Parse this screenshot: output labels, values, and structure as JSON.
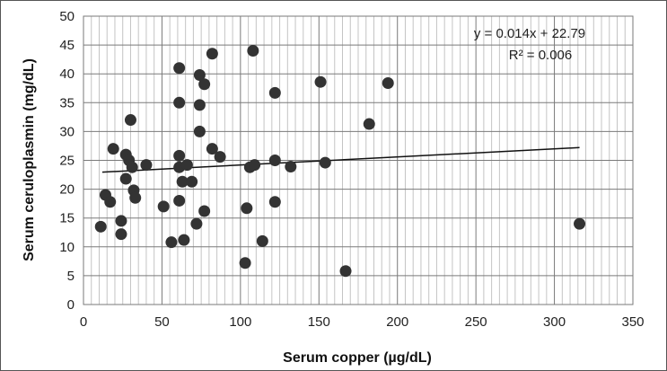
{
  "chart_data": {
    "type": "scatter",
    "xlabel": "Serum copper (µg/dL)",
    "ylabel": "Serum ceruloplasmin (mg/dL)",
    "xlim": [
      0,
      350
    ],
    "ylim": [
      0,
      50
    ],
    "x_major_step": 50,
    "x_minor_step": 5,
    "y_major_step": 5,
    "grid": true,
    "x_ticks": [
      "0",
      "50",
      "100",
      "150",
      "200",
      "250",
      "300",
      "350"
    ],
    "y_ticks": [
      "0",
      "5",
      "10",
      "15",
      "20",
      "25",
      "30",
      "35",
      "40",
      "45",
      "50"
    ],
    "annotations": {
      "equation": "y = 0.014x + 22.79",
      "r_squared": "R² = 0.006"
    },
    "trendline": {
      "slope": 0.014,
      "intercept": 22.79,
      "x_range": [
        12,
        316
      ]
    },
    "colors": {
      "point": "#333333",
      "trend": "#111111",
      "major_grid": "#7a7a7a",
      "minor_grid": "#c4c4c4"
    },
    "points": [
      {
        "x": 11,
        "y": 13.5
      },
      {
        "x": 14,
        "y": 19
      },
      {
        "x": 17,
        "y": 17.8
      },
      {
        "x": 19,
        "y": 27
      },
      {
        "x": 24,
        "y": 14.5
      },
      {
        "x": 24,
        "y": 12.2
      },
      {
        "x": 27,
        "y": 26
      },
      {
        "x": 27,
        "y": 21.8
      },
      {
        "x": 29,
        "y": 25
      },
      {
        "x": 30,
        "y": 32
      },
      {
        "x": 31,
        "y": 23.8
      },
      {
        "x": 32,
        "y": 19.8
      },
      {
        "x": 33,
        "y": 18.5
      },
      {
        "x": 40,
        "y": 24.2
      },
      {
        "x": 51,
        "y": 17
      },
      {
        "x": 56,
        "y": 10.8
      },
      {
        "x": 61,
        "y": 41
      },
      {
        "x": 61,
        "y": 35
      },
      {
        "x": 61,
        "y": 25.8
      },
      {
        "x": 61,
        "y": 23.8
      },
      {
        "x": 61,
        "y": 18
      },
      {
        "x": 63,
        "y": 21.3
      },
      {
        "x": 64,
        "y": 11.2
      },
      {
        "x": 66,
        "y": 24.2
      },
      {
        "x": 69,
        "y": 21.3
      },
      {
        "x": 72,
        "y": 14
      },
      {
        "x": 74,
        "y": 39.8
      },
      {
        "x": 74,
        "y": 34.6
      },
      {
        "x": 74,
        "y": 30
      },
      {
        "x": 77,
        "y": 38.2
      },
      {
        "x": 77,
        "y": 16.2
      },
      {
        "x": 82,
        "y": 43.5
      },
      {
        "x": 82,
        "y": 27
      },
      {
        "x": 87,
        "y": 25.6
      },
      {
        "x": 103,
        "y": 7.2
      },
      {
        "x": 104,
        "y": 16.7
      },
      {
        "x": 106,
        "y": 23.8
      },
      {
        "x": 108,
        "y": 44
      },
      {
        "x": 109,
        "y": 24.2
      },
      {
        "x": 114,
        "y": 11
      },
      {
        "x": 122,
        "y": 36.7
      },
      {
        "x": 122,
        "y": 25
      },
      {
        "x": 122,
        "y": 17.8
      },
      {
        "x": 132,
        "y": 23.9
      },
      {
        "x": 151,
        "y": 38.6
      },
      {
        "x": 154,
        "y": 24.6
      },
      {
        "x": 167,
        "y": 5.8
      },
      {
        "x": 182,
        "y": 31.3
      },
      {
        "x": 194,
        "y": 38.4
      },
      {
        "x": 316,
        "y": 14
      }
    ]
  }
}
